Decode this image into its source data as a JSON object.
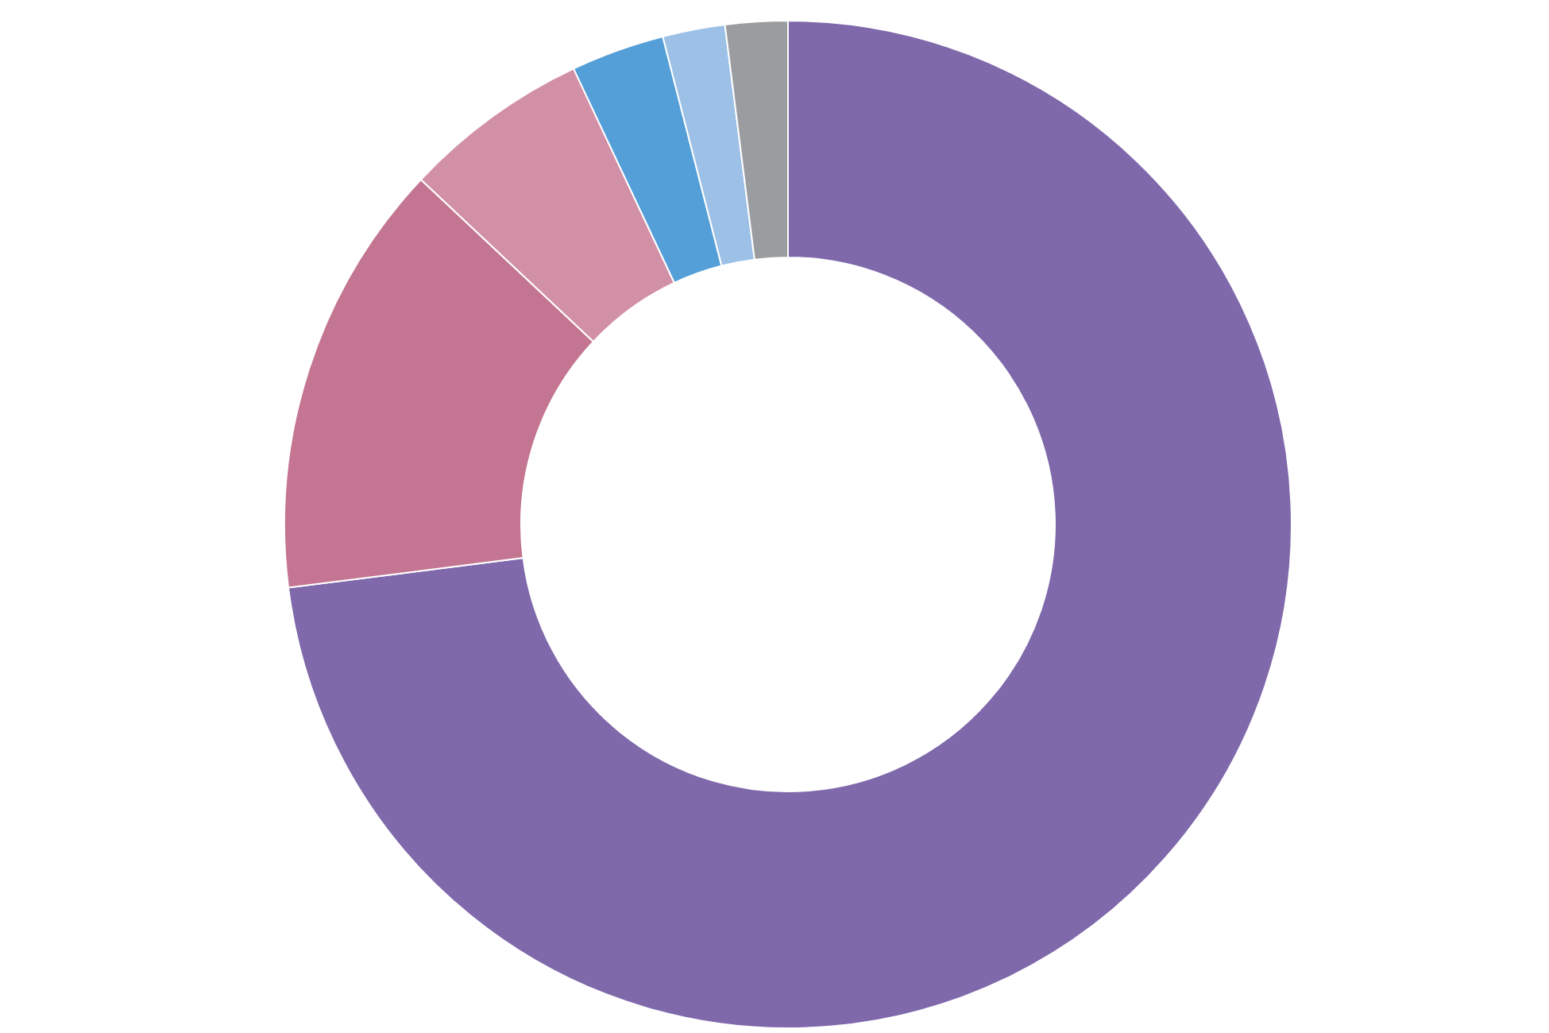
{
  "chart_data": {
    "type": "donut",
    "categories": [
      null,
      null,
      null,
      null,
      null,
      null
    ],
    "values": [
      73,
      14,
      6,
      3,
      2,
      2
    ],
    "colors": [
      "#7f69ab",
      "#c47591",
      "#d290a6",
      "#559fd8",
      "#9dc0e6",
      "#9a9c9f"
    ]
  }
}
